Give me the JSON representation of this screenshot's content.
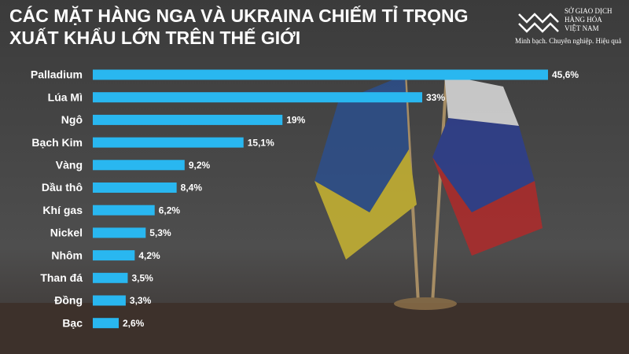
{
  "chart_data": {
    "type": "bar",
    "orientation": "horizontal",
    "title": [
      "CÁC MẶT HÀNG NGA VÀ UKRAINA CHIẾM TỈ TRỌNG",
      "XUẤT KHẨU LỚN TRÊN THẾ GIỚI"
    ],
    "categories": [
      "Palladium",
      "Lúa Mì",
      "Ngô",
      "Bạch Kim",
      "Vàng",
      "Dầu thô",
      "Khí gas",
      "Nickel",
      "Nhôm",
      "Than đá",
      "Đồng",
      "Bạc"
    ],
    "values": [
      45.6,
      33,
      19,
      15.1,
      9.2,
      8.4,
      6.2,
      5.3,
      4.2,
      3.5,
      3.3,
      2.6
    ],
    "value_labels": [
      "45,6%",
      "33%",
      "19%",
      "15,1%",
      "9,2%",
      "8,4%",
      "6,2%",
      "5,3%",
      "4,2%",
      "3,5%",
      "3,3%",
      "2,6%"
    ],
    "color": "#29b7f0"
  },
  "logo": {
    "name": [
      "SỞ GIAO DỊCH",
      "HÀNG HÓA",
      "VIỆT NAM"
    ],
    "tagline": "Minh bạch. Chuyên nghiệp. Hiệu quả"
  }
}
